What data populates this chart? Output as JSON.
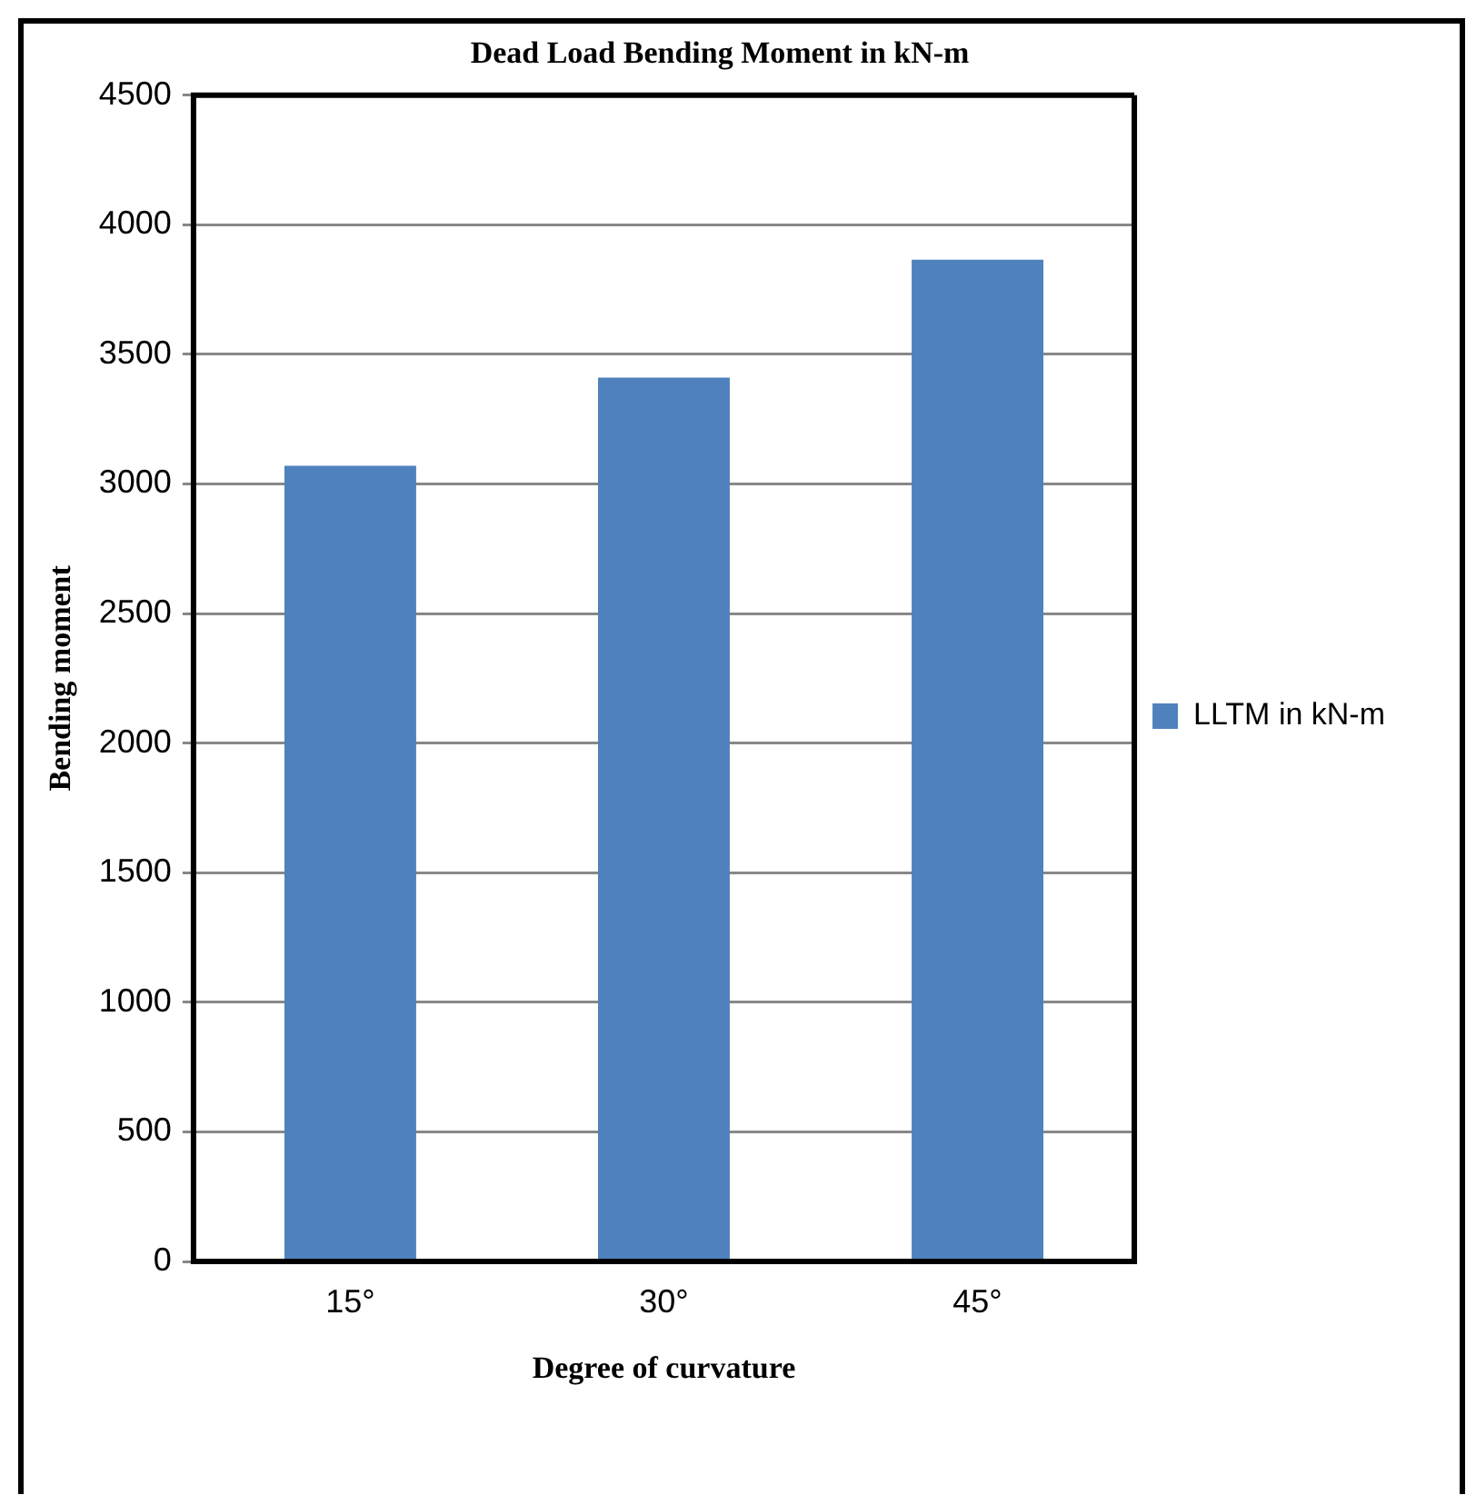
{
  "chart_data": {
    "type": "bar",
    "title": "Dead Load Bending Moment in kN-m",
    "xlabel": "Degree of curvature",
    "ylabel": "Bending moment",
    "categories": [
      "15°",
      "30°",
      "45°"
    ],
    "series": [
      {
        "name": "LLTM in kN-m",
        "color": "#4f81bd",
        "values": [
          3070,
          3410,
          3865
        ]
      }
    ],
    "ylim": [
      0,
      4500
    ],
    "yticks": [
      0,
      500,
      1000,
      1500,
      2000,
      2500,
      3000,
      3500,
      4000,
      4500
    ],
    "grid": "y",
    "legend": "right"
  }
}
